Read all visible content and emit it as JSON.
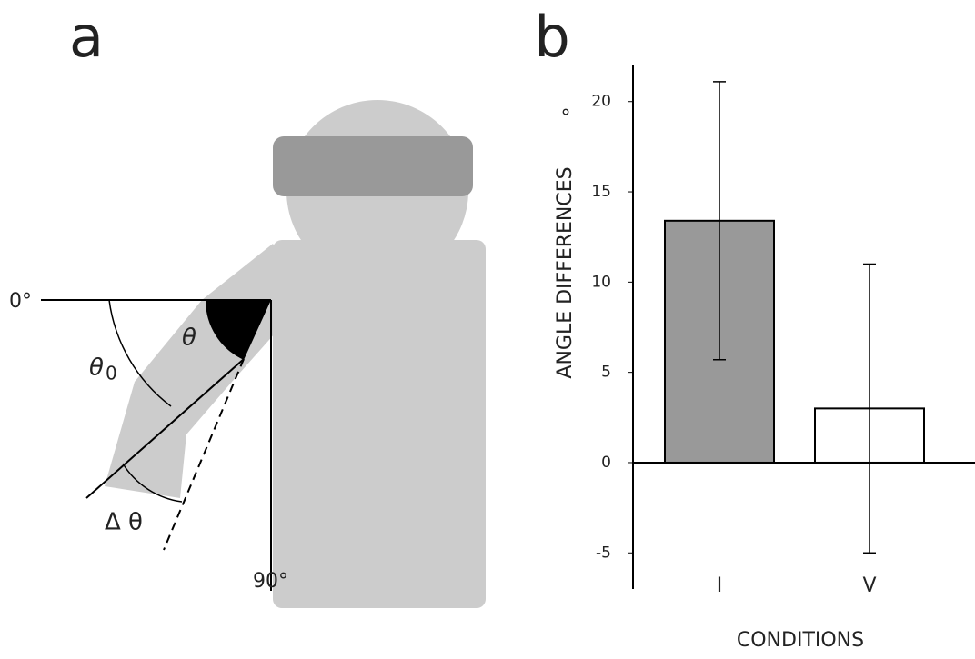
{
  "diagram": {
    "panel_label": "a",
    "labels": [
      "0°",
      "90°",
      "θ",
      "θ",
      "0",
      "Δ θ"
    ]
  },
  "chart_data": {
    "type": "bar",
    "panel_label": "b",
    "ylabel": "ANGLE DIFFERENCES",
    "yunit": "°",
    "xlabel": "CONDITIONS",
    "categories": [
      "I",
      "V"
    ],
    "values": [
      13.4,
      3.0
    ],
    "errors": [
      7.7,
      8.0
    ],
    "colors": [
      "#999999",
      "#ffffff"
    ],
    "ylim": [
      -7,
      22
    ],
    "yticks": [
      -5,
      0,
      5,
      10,
      15,
      20
    ],
    "grid": false
  }
}
